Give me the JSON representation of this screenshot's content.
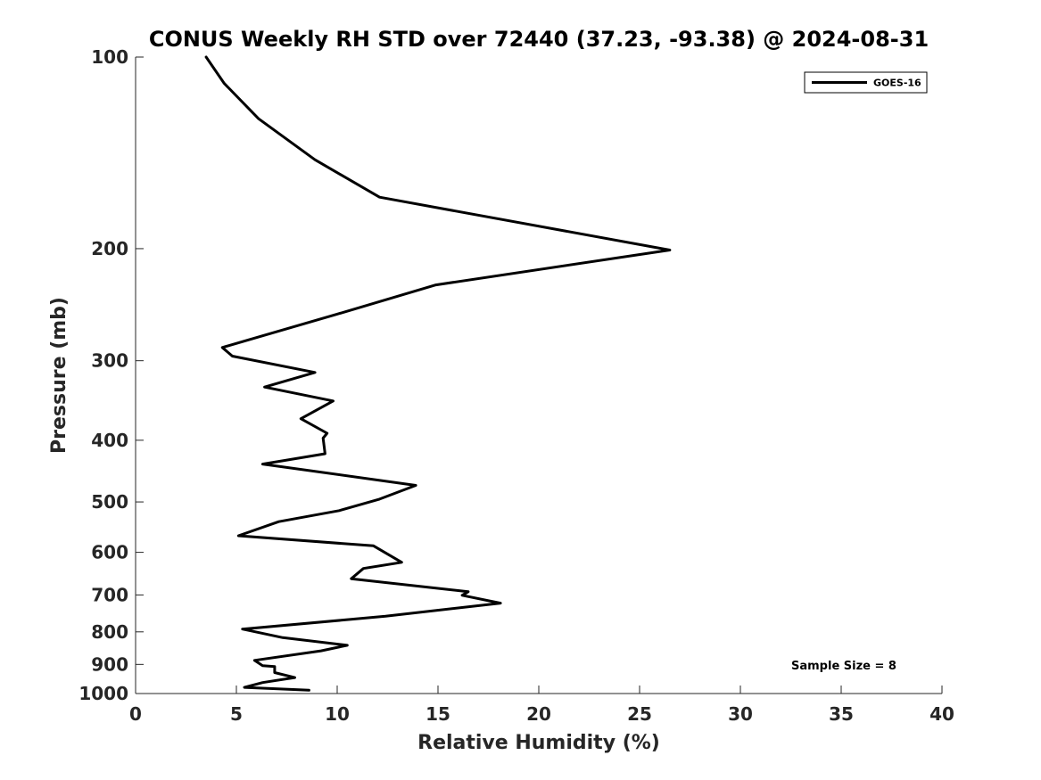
{
  "chart_data": {
    "type": "line",
    "title": "CONUS Weekly RH STD over 72440 (37.23, -93.38) @ 2024-08-31",
    "xlabel": "Relative Humidity (%)",
    "ylabel": "Pressure (mb)",
    "xlim": [
      0,
      40
    ],
    "ylim": [
      1000,
      100
    ],
    "yscale": "log",
    "y_reversed": true,
    "x_ticks": [
      0,
      5,
      10,
      15,
      20,
      25,
      30,
      35,
      40
    ],
    "y_ticks": [
      100,
      200,
      300,
      400,
      500,
      600,
      700,
      800,
      900,
      1000
    ],
    "grid": false,
    "legend_position": "top-right",
    "line_color": "#000000",
    "series": [
      {
        "name": "GOES-16",
        "x": [
          3.5,
          4.4,
          6.1,
          8.9,
          12.1,
          26.5,
          14.9,
          9.9,
          4.3,
          4.8,
          8.9,
          6.4,
          9.8,
          8.2,
          9.5,
          9.3,
          9.4,
          6.3,
          13.9,
          12.1,
          10.1,
          7.1,
          5.1,
          11.8,
          13.2,
          11.3,
          10.7,
          16.5,
          16.2,
          18.1,
          12.4,
          5.3,
          7.3,
          10.5,
          9.2,
          5.9,
          6.3,
          6.9,
          6.9,
          7.9,
          6.3,
          5.4,
          8.6
        ],
        "y": [
          100,
          110,
          125,
          145,
          166,
          201,
          228,
          254,
          286,
          295,
          313,
          330,
          347,
          370,
          390,
          397,
          420,
          436,
          471,
          495,
          516,
          537,
          565,
          586,
          622,
          636,
          660,
          692,
          701,
          721,
          756,
          792,
          817,
          840,
          857,
          887,
          904,
          907,
          927,
          944,
          961,
          978,
          988
        ]
      }
    ],
    "annotations": [
      "Sample Size = 8"
    ]
  }
}
